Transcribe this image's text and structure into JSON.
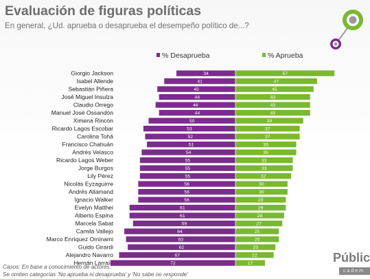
{
  "header": {
    "title": "Evaluación de figuras políticas",
    "subtitle": "En general, ¿Ud. aprueba o desaprueba el desempeño político de...?"
  },
  "chart_data": {
    "type": "bar",
    "orientation": "horizontal-diverging",
    "categories": [
      "Giorgio Jackson",
      "Isabel Allende",
      "Sebastián Piñera",
      "José Miguel Insulza",
      "Claudio Orrego",
      "Manuel José Ossandón",
      "Ximena Rincón",
      "Ricardo Lagos Escobar",
      "Carolina Tohá",
      "Francisco Chahuán",
      "Andrés Velasco",
      "Ricardo Lagos Weber",
      "Jorge Burgos",
      "Lily Pérez",
      "Nicolás Eyzaguirre",
      "Andrés Allamand",
      "Ignacio Walker",
      "Evelyn Matthei",
      "Alberto Espina",
      "Marcela Sabat",
      "Camila Vallejo",
      "Marco Enríquez Ominami",
      "Guido Girardi",
      "Alejandro Navarro",
      "Hernán Larraín"
    ],
    "series": [
      {
        "name": "% Desaprueba",
        "color": "#7b2d8b",
        "values": [
          34,
          41,
          45,
          44,
          46,
          44,
          50,
          53,
          52,
          51,
          54,
          55,
          55,
          55,
          56,
          56,
          56,
          61,
          61,
          59,
          64,
          63,
          62,
          67,
          72
        ]
      },
      {
        "name": "% Aprueba",
        "color": "#7ab92f",
        "values": [
          57,
          47,
          45,
          43,
          43,
          43,
          39,
          37,
          37,
          35,
          35,
          33,
          33,
          32,
          30,
          30,
          29,
          29,
          28,
          27,
          25,
          25,
          23,
          22,
          17
        ]
      }
    ],
    "legend_position": "top",
    "grid": false,
    "value_labels": true
  },
  "footer": {
    "line1": "Casos:  En base a conocimiento de actores.",
    "line2": "Se omiten categorías 'No aprueba ni desaprueba' y 'No sabe no responde'"
  },
  "brand": {
    "name": "Pública",
    "sub": "cadem"
  }
}
